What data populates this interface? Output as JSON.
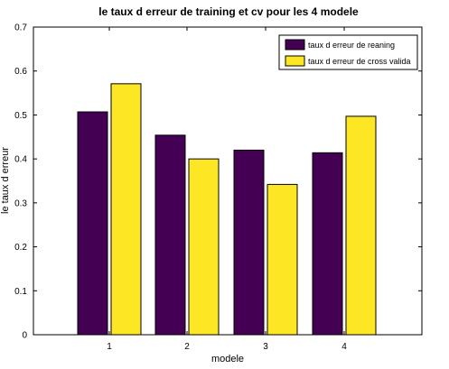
{
  "chart_data": {
    "type": "bar",
    "title": "le taux d erreur de training et cv pour les 4 modele",
    "xlabel": "modele",
    "ylabel": "le taux d erreur",
    "categories": [
      "1",
      "2",
      "3",
      "4"
    ],
    "ylim": [
      0,
      0.7
    ],
    "yticks": [
      "0",
      "0.1",
      "0.2",
      "0.3",
      "0.4",
      "0.5",
      "0.6",
      "0.7"
    ],
    "grid": false,
    "legend_position": "top-right",
    "series": [
      {
        "name": "taux d erreur de reaning",
        "color": "#440154",
        "values": [
          0.507,
          0.454,
          0.42,
          0.414
        ]
      },
      {
        "name": "taux d erreur de cross valida",
        "color": "#fde725",
        "values": [
          0.571,
          0.4,
          0.342,
          0.497
        ]
      }
    ]
  }
}
